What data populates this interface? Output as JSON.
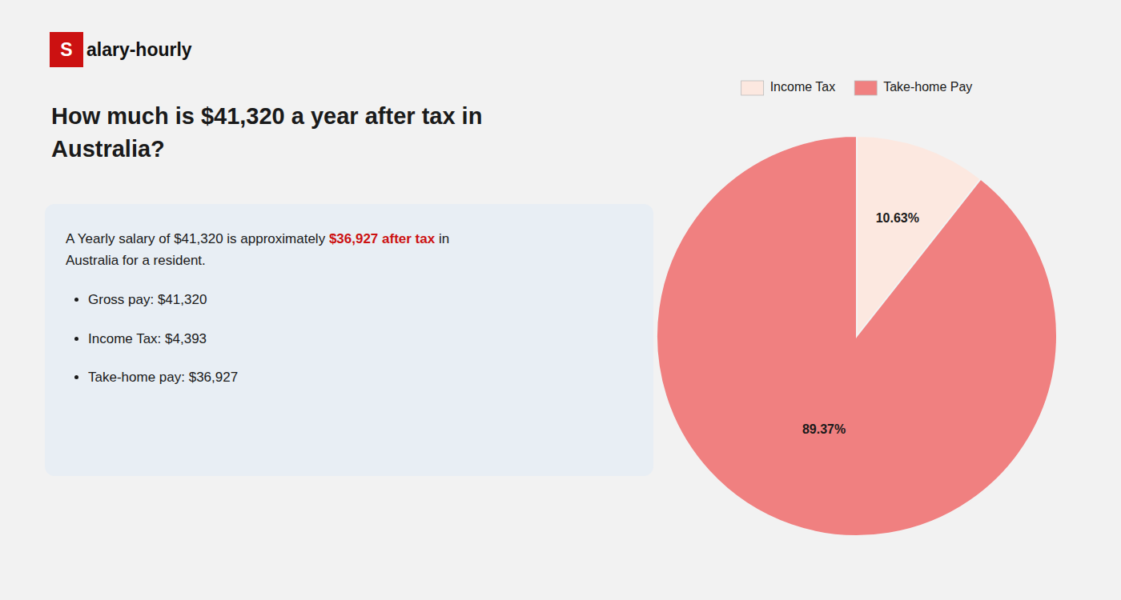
{
  "chart_data": {
    "type": "pie",
    "title": "How much is $41,320 a year after tax in Australia?",
    "categories": [
      "Income Tax",
      "Take-home Pay"
    ],
    "values": [
      10.63,
      89.37
    ],
    "value_labels": [
      "10.63%",
      "89.37%"
    ],
    "colors": [
      "#fce8e0",
      "#f08080"
    ],
    "data_labels": true,
    "legend": "top",
    "annotations": [
      {
        "text": "S",
        "color": "#cc1111"
      },
      {
        "text": "alary-hourly"
      },
      {
        "text": "A Yearly salary of $41,320 is approximately "
      },
      {
        "text": "$36,927 after tax",
        "color": "#cc1111"
      },
      {
        "text": " in"
      },
      {
        "text": "Australia for a resident."
      },
      {
        "text": "Gross pay: $41,320"
      },
      {
        "text": "Income Tax: $4,393"
      },
      {
        "text": "Take-home pay: $36,927"
      }
    ]
  }
}
